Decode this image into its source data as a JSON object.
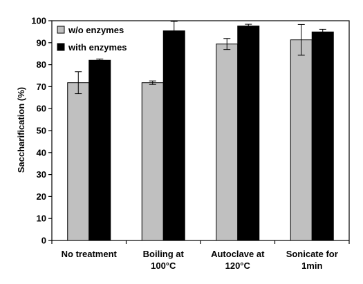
{
  "chart_data": {
    "type": "bar",
    "title": "",
    "xlabel": "",
    "ylabel": "Saccharification (%)",
    "ylim": [
      0,
      100
    ],
    "yticks": [
      0,
      10,
      20,
      30,
      40,
      50,
      60,
      70,
      80,
      90,
      100
    ],
    "grid": false,
    "legend_position": "top-left",
    "categories": [
      [
        "No treatment"
      ],
      [
        "Boiling at",
        "100°C"
      ],
      [
        "Autoclave at",
        "120°C"
      ],
      [
        "Sonicate for",
        "1min"
      ]
    ],
    "series": [
      {
        "name": "w/o enzymes",
        "color": "#c0c0c0",
        "values": [
          71.8,
          71.8,
          89.4,
          91.3
        ],
        "errors": [
          5.0,
          0.8,
          2.5,
          7.0
        ]
      },
      {
        "name": "with enzymes",
        "color": "#000000",
        "values": [
          82.0,
          95.4,
          97.6,
          94.9
        ],
        "errors": [
          0.6,
          4.3,
          0.8,
          1.2
        ]
      }
    ]
  }
}
